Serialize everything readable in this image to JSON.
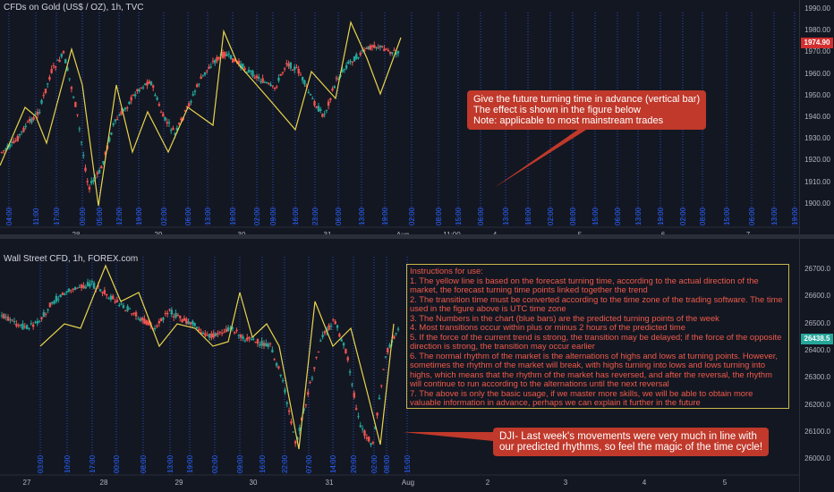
{
  "top_chart": {
    "title": "CFDs on Gold (US$ / OZ), 1h, TVC",
    "price_ticks": [
      "1990.00",
      "1980.00",
      "1970.00",
      "1960.00",
      "1950.00",
      "1940.00",
      "1930.00",
      "1920.00",
      "1910.00",
      "1900.00"
    ],
    "current_price": "1974.90",
    "date_labels": [
      "28",
      "29",
      "30",
      "31",
      "Aug",
      "11:00",
      "4",
      "5",
      "6",
      "7"
    ],
    "time_labels": [
      "04:00",
      "11:00",
      "17:00",
      "00:00",
      "05:00",
      "12:00",
      "19:00",
      "02:00",
      "06:00",
      "13:00",
      "19:00",
      "02:00",
      "09:00",
      "16:00",
      "23:00",
      "06:00",
      "13:00",
      "19:00",
      "02:00",
      "08:00",
      "15:00",
      "06:00",
      "13:00",
      "18:00",
      "02:00",
      "08:00",
      "15:00",
      "06:00",
      "13:00",
      "19:00",
      "02:00",
      "08:00",
      "15:00",
      "06:00",
      "13:00",
      "19:00",
      "02:00",
      "08:00",
      "14:00",
      "19:00"
    ],
    "callout": {
      "line1": "Give the future turning time in advance (vertical bar)",
      "line2": "The effect is shown in the figure below",
      "line3": "Note: applicable to most mainstream trades"
    }
  },
  "bottom_chart": {
    "title": "Wall Street CFD, 1h, FOREX.com",
    "price_ticks": [
      "26700.0",
      "26600.0",
      "26500.0",
      "26400.0",
      "26300.0",
      "26200.0",
      "26100.0",
      "26000.0"
    ],
    "current_price": "26438.5",
    "date_labels": [
      "27",
      "28",
      "29",
      "30",
      "31",
      "Aug",
      "2",
      "3",
      "4",
      "5"
    ],
    "time_labels": [
      "03:00",
      "10:00",
      "17:00",
      "00:00",
      "08:00",
      "13:00",
      "19:00",
      "02:00",
      "09:00",
      "16:00",
      "22:00",
      "07:00",
      "14:00",
      "20:00",
      "02:00",
      "08:00",
      "15:00"
    ],
    "instructions": {
      "heading": "Instructions for use:",
      "items": [
        "1. The yellow line is based on the forecast turning time, according to the actual direction of the market, the forecast turning time points linked together the trend",
        "2. The transition time must be converted according to the time zone of the trading software. The time used in the figure above is UTC time zone",
        "3. The Numbers in the chart (blue bars) are the predicted turning points of the week",
        "4. Most transitions occur within plus or minus 2 hours of the predicted time",
        "5. If the force of the current trend is strong, the transition may be delayed; if the force of the opposite direction is strong, the transition may occur earlier",
        "6. The normal rhythm of the market is the alternations of highs and lows at turning points. However, sometimes the rhythm of the market will break, with highs turning into lows and lows turning into highs, which means that the rhythm of the market has reversed, and after the reversal, the rhythm will continue to run according to the alternations until the next reversal",
        "7. The above is only the basic usage, if we master more skills, we will be able to obtain more valuable information in advance, perhaps we can explain it further in the future"
      ]
    },
    "callout": {
      "line1": "DJI- Last week's movements were very much in line with",
      "line2": "our predicted rhythms, so feel the magic of the time cycle!"
    }
  },
  "colors": {
    "background": "#131722",
    "up_candle": "#26a69a",
    "down_candle": "#ef5350",
    "zigzag": "#e8d44d",
    "forecast_bar": "#2962ff",
    "callout": "#c0392b"
  }
}
